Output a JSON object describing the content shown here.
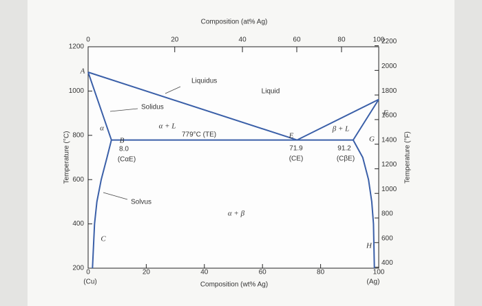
{
  "chart_data": {
    "type": "line",
    "title": "Composition (at% Ag)",
    "x_label": "Composition (wt% Ag)",
    "y_label": "Temperature (°C)",
    "y2_label": "Temperature (°F)",
    "xlim": [
      0,
      100
    ],
    "xticks": [
      0,
      20,
      40,
      60,
      80,
      100
    ],
    "x2ticks": [
      0,
      {
        "value": 29.8,
        "label": "20"
      },
      {
        "value": 53.1,
        "label": "40"
      },
      {
        "value": 71.8,
        "label": "60"
      },
      {
        "value": 87.2,
        "label": "80"
      },
      100
    ],
    "ylim": [
      200,
      1200
    ],
    "yticks": [
      200,
      400,
      600,
      800,
      1000,
      1200
    ],
    "y2lim": [
      392,
      2192
    ],
    "y2ticks": [
      400,
      600,
      800,
      1000,
      1200,
      1400,
      1600,
      1800,
      2000,
      2200
    ],
    "end_labels": [
      "(Cu)",
      "(Ag)"
    ],
    "series": [
      {
        "name": "Liquidus",
        "color": "#3a5fa8",
        "x": [
          0,
          71.9,
          100
        ],
        "values": [
          1085,
          779,
          962
        ]
      },
      {
        "name": "Solidus",
        "color": "#3a5fa8",
        "x": [
          0,
          8.0,
          null,
          91.2,
          100
        ],
        "values": [
          1085,
          779,
          null,
          779,
          962
        ]
      },
      {
        "name": "Solvus",
        "color": "#3a5fa8",
        "x": [
          8.0,
          6.5,
          4.5,
          3.0,
          2.2,
          1.5,
          null,
          91.2,
          94.5,
          96.5,
          97.6,
          98.2,
          98.5
        ],
        "values": [
          779,
          700,
          600,
          500,
          400,
          200,
          null,
          779,
          700,
          600,
          500,
          400,
          200
        ]
      },
      {
        "name": "779°C (TE)",
        "color": "#3a5fa8",
        "x": [
          8.0,
          91.2
        ],
        "values": [
          779,
          779
        ]
      }
    ],
    "annotations": [
      "A",
      "B",
      "C",
      "E",
      "F",
      "G",
      "H",
      "α",
      "α + L",
      "β + L",
      "α + β",
      "Liquid",
      "8.0",
      "(CαE)",
      "71.9",
      "(CE)",
      "91.2",
      "(CβE)"
    ]
  }
}
